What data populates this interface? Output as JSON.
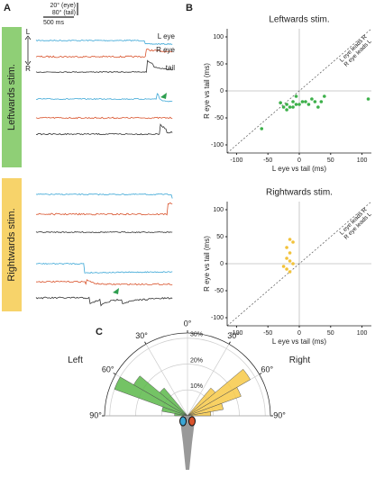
{
  "panel_a": {
    "label": "A",
    "scale_bar": [
      "20° (eye)",
      "80° (tail)",
      "500 ms"
    ],
    "axis": [
      "L",
      "R"
    ],
    "groups": [
      {
        "label": "Leftwards stim.",
        "color": "#8fcf76"
      },
      {
        "label": "Rightwards stim.",
        "color": "#f7d36a"
      }
    ],
    "traces": [
      {
        "name": "L eye",
        "color": "#3aa6d6"
      },
      {
        "name": "R eye",
        "color": "#d9532c"
      },
      {
        "name": "tail",
        "color": "#333333"
      }
    ],
    "marker_color": "#2e9e4f"
  },
  "chart_data": [
    {
      "type": "scatter",
      "panel": "B",
      "title": "Leftwards stim.",
      "title_color": "#3db04a",
      "color": "#3db04a",
      "xlabel": "L eye vs tail (ms)",
      "ylabel": "R eye vs tail (ms)",
      "annotations": [
        "L eye leads R",
        "R eye leads L"
      ],
      "x": [
        -5,
        -10,
        -20,
        -25,
        -30,
        -20,
        -15,
        0,
        5,
        10,
        15,
        20,
        25,
        30,
        35,
        40,
        -5,
        -60,
        110,
        -10
      ],
      "values": [
        -10,
        -20,
        -25,
        -30,
        -22,
        -35,
        -30,
        -25,
        -20,
        -20,
        -25,
        -15,
        -20,
        -30,
        -20,
        -10,
        -25,
        -70,
        -15,
        -30
      ],
      "xlim": [
        -115,
        115
      ],
      "ylim": [
        -115,
        115
      ],
      "xticks": [
        -100,
        -50,
        0,
        50,
        100
      ],
      "yticks": [
        -100,
        -50,
        0,
        50,
        100
      ]
    },
    {
      "type": "scatter",
      "title": "Rightwards stim.",
      "title_color": "#f2b82e",
      "color": "#f2c23a",
      "xlabel": "L eye vs tail (ms)",
      "ylabel": "R eye vs tail (ms)",
      "annotations": [
        "L eye leads R",
        "R eye leads L"
      ],
      "x": [
        -15,
        -10,
        -20,
        -15,
        -20,
        -15,
        -20,
        -15,
        -10,
        -25
      ],
      "values": [
        45,
        40,
        30,
        20,
        10,
        5,
        -10,
        -15,
        0,
        -5
      ],
      "xlim": [
        -115,
        115
      ],
      "ylim": [
        -115,
        115
      ],
      "xticks": [
        -100,
        -50,
        0,
        50,
        100
      ],
      "yticks": [
        -100,
        -50,
        0,
        50,
        100
      ]
    },
    {
      "type": "polar_bar",
      "panel": "C",
      "alim": [
        -90,
        90
      ],
      "rlim": [
        0,
        32
      ],
      "angle_ticks": [
        {
          "value": -90,
          "label": "90°"
        },
        {
          "value": -60,
          "label": "60°"
        },
        {
          "value": -30,
          "label": "30°"
        },
        {
          "value": 0,
          "label": "0°"
        },
        {
          "value": 30,
          "label": "30°"
        },
        {
          "value": 60,
          "label": "60°"
        },
        {
          "value": 90,
          "label": "90°"
        }
      ],
      "rticks": [
        {
          "value": 10,
          "label": "10%"
        },
        {
          "value": 20,
          "label": "20%"
        },
        {
          "value": 30,
          "label": "30%"
        }
      ],
      "series": [
        {
          "name": "Left",
          "color": "#5cb84a",
          "bins": [
            -90,
            -80,
            -70,
            -60,
            -50,
            -40
          ],
          "values": [
            5,
            10,
            30,
            24,
            14
          ]
        },
        {
          "name": "Right",
          "color": "#f7c948",
          "bins": [
            40,
            50,
            60,
            70,
            80,
            90
          ],
          "values": [
            14,
            28,
            22,
            14,
            9
          ]
        }
      ]
    }
  ]
}
